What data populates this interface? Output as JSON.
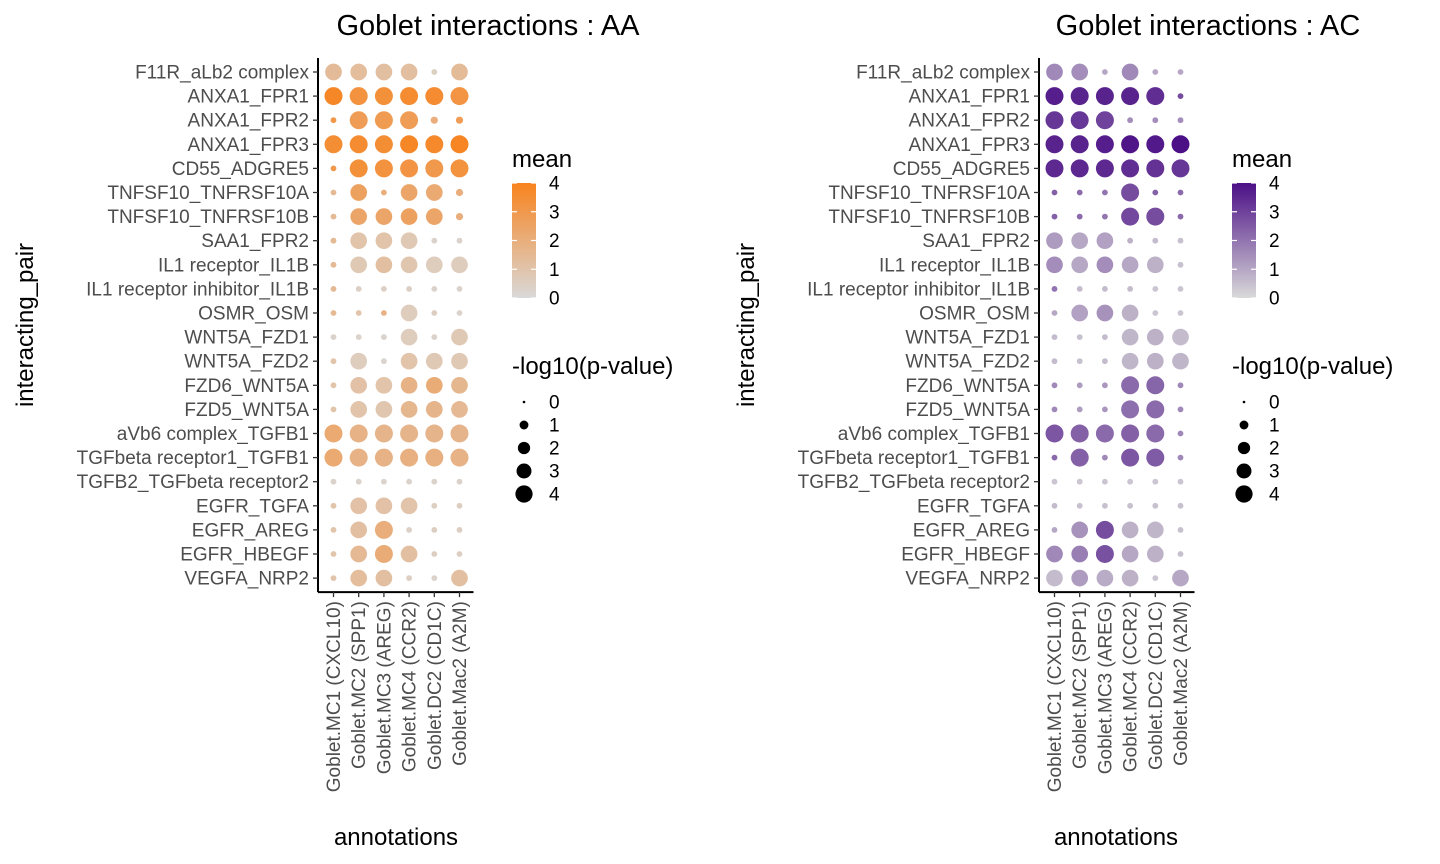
{
  "chart_data": [
    {
      "type": "scatter",
      "title": "Goblet interactions : AA",
      "xlabel": "annotations",
      "ylabel": "interacting_pair",
      "y_categories": [
        "F11R_aLb2 complex",
        "ANXA1_FPR1",
        "ANXA1_FPR2",
        "ANXA1_FPR3",
        "CD55_ADGRE5",
        "TNFSF10_TNFRSF10A",
        "TNFSF10_TNFRSF10B",
        "SAA1_FPR2",
        "IL1 receptor_IL1B",
        "IL1 receptor inhibitor_IL1B",
        "OSMR_OSM",
        "WNT5A_FZD1",
        "WNT5A_FZD2",
        "FZD6_WNT5A",
        "FZD5_WNT5A",
        "aVb6 complex_TGFB1",
        "TGFbeta receptor1_TGFB1",
        "TGFB2_TGFbeta receptor2",
        "EGFR_TGFA",
        "EGFR_AREG",
        "EGFR_HBEGF",
        "VEGFA_NRP2"
      ],
      "x_categories": [
        "Goblet.MC1 (CXCL10)",
        "Goblet.MC2 (SPP1)",
        "Goblet.MC3 (AREG)",
        "Goblet.MC4 (CCR2)",
        "Goblet.DC2 (CD1C)",
        "Goblet.Mac2 (A2M)"
      ],
      "mean": [
        [
          1.4,
          1.3,
          1.2,
          1.2,
          0.5,
          1.4
        ],
        [
          3.8,
          3.3,
          3.4,
          3.6,
          3.6,
          3.2
        ],
        [
          3.0,
          2.8,
          2.9,
          2.8,
          2.0,
          2.8
        ],
        [
          3.5,
          3.6,
          3.5,
          3.8,
          3.7,
          3.9
        ],
        [
          3.0,
          3.4,
          3.3,
          3.2,
          3.0,
          3.3
        ],
        [
          1.5,
          2.6,
          2.0,
          2.4,
          2.2,
          2.0
        ],
        [
          1.5,
          2.4,
          2.4,
          2.6,
          2.4,
          2.0
        ],
        [
          1.5,
          1.0,
          1.0,
          0.8,
          0.3,
          0.3
        ],
        [
          1.5,
          0.8,
          1.2,
          0.9,
          0.6,
          0.6
        ],
        [
          1.5,
          0.4,
          0.4,
          0.4,
          0.3,
          0.3
        ],
        [
          1.5,
          1.0,
          1.8,
          0.6,
          0.5,
          0.3
        ],
        [
          0.3,
          0.3,
          0.3,
          0.6,
          0.3,
          0.8
        ],
        [
          1.0,
          0.6,
          0.3,
          1.0,
          0.8,
          0.8
        ],
        [
          1.0,
          1.1,
          1.0,
          1.8,
          2.1,
          1.6
        ],
        [
          1.0,
          1.0,
          0.9,
          1.6,
          1.7,
          1.5
        ],
        [
          2.2,
          1.8,
          1.7,
          1.7,
          1.7,
          1.7
        ],
        [
          2.2,
          1.8,
          1.8,
          1.9,
          1.9,
          1.8
        ],
        [
          0.3,
          0.3,
          0.3,
          0.3,
          0.3,
          0.3
        ],
        [
          1.0,
          1.1,
          1.1,
          1.0,
          0.5,
          0.5
        ],
        [
          1.0,
          1.2,
          2.0,
          0.4,
          0.5,
          0.5
        ],
        [
          1.0,
          1.5,
          2.1,
          1.2,
          0.5,
          0.5
        ],
        [
          1.0,
          1.3,
          1.2,
          0.5,
          0.3,
          1.2
        ]
      ],
      "neg_log10_pvalue": [
        [
          3.0,
          3.0,
          3.0,
          3.0,
          0.3,
          3.0
        ],
        [
          3.5,
          3.5,
          3.5,
          3.5,
          3.5,
          3.5
        ],
        [
          0.3,
          3.5,
          3.5,
          3.5,
          0.5,
          0.5
        ],
        [
          3.5,
          3.5,
          3.5,
          3.5,
          3.5,
          3.5
        ],
        [
          0.3,
          3.5,
          3.5,
          3.5,
          3.5,
          3.5
        ],
        [
          0.3,
          3.0,
          0.3,
          3.0,
          3.0,
          0.5
        ],
        [
          0.3,
          3.0,
          3.0,
          3.0,
          3.0,
          0.5
        ],
        [
          0.3,
          3.0,
          3.0,
          3.0,
          0.3,
          0.3
        ],
        [
          0.3,
          3.0,
          3.0,
          3.0,
          3.0,
          3.0
        ],
        [
          0.3,
          0.3,
          0.3,
          0.3,
          0.3,
          0.3
        ],
        [
          0.3,
          0.3,
          0.3,
          3.0,
          0.3,
          0.3
        ],
        [
          0.3,
          0.3,
          0.3,
          3.0,
          0.3,
          3.0
        ],
        [
          0.3,
          3.0,
          0.3,
          3.0,
          3.0,
          3.0
        ],
        [
          0.3,
          3.0,
          3.0,
          3.0,
          3.0,
          3.0
        ],
        [
          0.3,
          3.0,
          3.0,
          3.0,
          3.0,
          3.0
        ],
        [
          3.5,
          3.5,
          3.5,
          3.5,
          3.5,
          3.5
        ],
        [
          3.5,
          3.5,
          3.5,
          3.5,
          3.5,
          3.5
        ],
        [
          0.3,
          0.3,
          0.3,
          0.3,
          0.3,
          0.3
        ],
        [
          0.3,
          3.0,
          3.0,
          3.0,
          0.3,
          0.3
        ],
        [
          0.3,
          3.0,
          3.5,
          0.3,
          0.3,
          0.3
        ],
        [
          0.3,
          3.0,
          3.5,
          3.0,
          0.3,
          0.3
        ],
        [
          0.3,
          3.0,
          3.0,
          0.3,
          0.3,
          3.0
        ]
      ],
      "mean_colorscale": [
        "#d9d9d9",
        "#f8831e"
      ],
      "mean_legend": {
        "title": "mean",
        "ticks": [
          "4",
          "3",
          "2",
          "1",
          "0"
        ],
        "range": [
          0,
          4
        ]
      },
      "size_legend": {
        "title": "-log10(p-value)",
        "ticks": [
          "0",
          "1",
          "2",
          "3",
          "4"
        ]
      }
    },
    {
      "type": "scatter",
      "title": "Goblet interactions : AC",
      "xlabel": "annotations",
      "ylabel": "interacting_pair",
      "y_categories": [
        "F11R_aLb2 complex",
        "ANXA1_FPR1",
        "ANXA1_FPR2",
        "ANXA1_FPR3",
        "CD55_ADGRE5",
        "TNFSF10_TNFRSF10A",
        "TNFSF10_TNFRSF10B",
        "SAA1_FPR2",
        "IL1 receptor_IL1B",
        "IL1 receptor inhibitor_IL1B",
        "OSMR_OSM",
        "WNT5A_FZD1",
        "WNT5A_FZD2",
        "FZD6_WNT5A",
        "FZD5_WNT5A",
        "aVb6 complex_TGFB1",
        "TGFbeta receptor1_TGFB1",
        "TGFB2_TGFbeta receptor2",
        "EGFR_TGFA",
        "EGFR_AREG",
        "EGFR_HBEGF",
        "VEGFA_NRP2"
      ],
      "x_categories": [
        "Goblet.MC1 (CXCL10)",
        "Goblet.MC2 (SPP1)",
        "Goblet.MC3 (AREG)",
        "Goblet.MC4 (CCR2)",
        "Goblet.DC2 (CD1C)",
        "Goblet.Mac2 (A2M)"
      ],
      "mean": [
        [
          1.6,
          1.5,
          1.0,
          1.6,
          1.0,
          1.0
        ],
        [
          3.7,
          3.6,
          3.6,
          3.6,
          3.4,
          2.8
        ],
        [
          3.2,
          3.2,
          3.0,
          1.5,
          1.5,
          1.5
        ],
        [
          3.6,
          3.6,
          3.7,
          3.9,
          3.8,
          4.0
        ],
        [
          3.5,
          3.5,
          3.5,
          3.4,
          3.3,
          3.2
        ],
        [
          2.4,
          2.2,
          2.0,
          2.8,
          2.4,
          2.2
        ],
        [
          2.4,
          2.2,
          2.0,
          2.9,
          2.8,
          2.2
        ],
        [
          1.2,
          1.0,
          1.1,
          0.8,
          0.6,
          0.5
        ],
        [
          1.5,
          1.0,
          1.5,
          1.0,
          0.8,
          0.5
        ],
        [
          2.0,
          0.6,
          0.6,
          0.6,
          0.4,
          0.4
        ],
        [
          1.0,
          1.1,
          1.4,
          0.8,
          0.4,
          0.4
        ],
        [
          0.6,
          0.5,
          0.6,
          0.7,
          0.8,
          0.6
        ],
        [
          0.6,
          0.5,
          0.6,
          0.7,
          0.8,
          0.7
        ],
        [
          1.6,
          1.2,
          1.3,
          2.2,
          2.3,
          1.6
        ],
        [
          1.6,
          1.2,
          1.3,
          2.1,
          2.2,
          1.6
        ],
        [
          2.6,
          2.4,
          2.2,
          2.4,
          2.2,
          1.6
        ],
        [
          2.2,
          2.4,
          1.6,
          2.6,
          2.5,
          1.6
        ],
        [
          0.4,
          0.4,
          0.4,
          0.4,
          0.4,
          0.4
        ],
        [
          0.6,
          0.5,
          0.5,
          0.5,
          0.5,
          0.5
        ],
        [
          1.0,
          1.4,
          2.8,
          0.8,
          0.7,
          0.5
        ],
        [
          1.6,
          1.8,
          2.7,
          1.0,
          0.8,
          0.5
        ],
        [
          0.6,
          1.2,
          0.9,
          0.8,
          0.4,
          1.0
        ]
      ],
      "neg_log10_pvalue": [
        [
          3.0,
          3.0,
          0.3,
          3.0,
          0.3,
          0.3
        ],
        [
          3.5,
          3.5,
          3.5,
          3.5,
          3.5,
          0.3
        ],
        [
          3.5,
          3.5,
          3.5,
          0.3,
          0.3,
          0.3
        ],
        [
          3.5,
          3.5,
          3.5,
          3.5,
          3.5,
          3.5
        ],
        [
          3.5,
          3.5,
          3.5,
          3.5,
          3.5,
          3.5
        ],
        [
          0.3,
          0.3,
          0.3,
          3.5,
          0.3,
          0.3
        ],
        [
          0.3,
          0.3,
          0.3,
          3.5,
          3.5,
          0.3
        ],
        [
          3.0,
          3.0,
          3.0,
          0.3,
          0.3,
          0.3
        ],
        [
          3.0,
          3.0,
          3.0,
          3.0,
          3.0,
          0.3
        ],
        [
          0.3,
          0.3,
          0.3,
          0.3,
          0.3,
          0.3
        ],
        [
          0.3,
          3.0,
          3.0,
          3.0,
          0.3,
          0.3
        ],
        [
          0.3,
          0.3,
          0.3,
          3.0,
          3.0,
          3.0
        ],
        [
          0.3,
          0.3,
          0.3,
          3.0,
          3.0,
          3.0
        ],
        [
          0.3,
          0.3,
          0.3,
          3.5,
          3.5,
          0.3
        ],
        [
          0.3,
          0.3,
          0.3,
          3.5,
          3.5,
          0.3
        ],
        [
          3.5,
          3.5,
          3.5,
          3.5,
          3.5,
          0.3
        ],
        [
          0.3,
          3.5,
          0.3,
          3.5,
          3.5,
          0.3
        ],
        [
          0.3,
          0.3,
          0.3,
          0.3,
          0.3,
          0.3
        ],
        [
          0.3,
          0.3,
          0.3,
          0.3,
          0.3,
          0.3
        ],
        [
          0.3,
          3.0,
          3.5,
          3.0,
          3.0,
          0.3
        ],
        [
          3.0,
          3.0,
          3.5,
          3.0,
          3.0,
          0.3
        ],
        [
          3.0,
          3.0,
          3.0,
          3.0,
          0.3,
          3.0
        ]
      ],
      "mean_colorscale": [
        "#d9d9d9",
        "#4b0f86"
      ],
      "mean_legend": {
        "title": "mean",
        "ticks": [
          "4",
          "3",
          "2",
          "1",
          "0"
        ],
        "range": [
          0,
          4
        ]
      },
      "size_legend": {
        "title": "-log10(p-value)",
        "ticks": [
          "0",
          "1",
          "2",
          "3",
          "4"
        ]
      }
    }
  ]
}
